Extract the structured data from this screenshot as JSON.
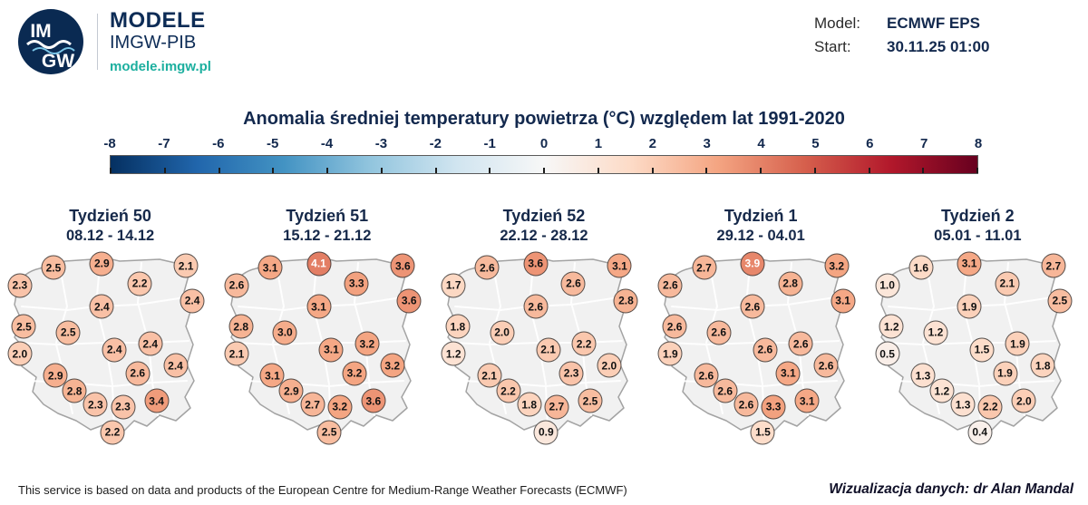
{
  "header": {
    "logo_letters_top": "IM",
    "logo_letters_bottom": "GW",
    "brand_top": "MODELE",
    "brand_bottom": "IMGW-PIB",
    "brand_url": "modele.imgw.pl",
    "model_label": "Model:",
    "model_value": "ECMWF EPS",
    "start_label": "Start:",
    "start_value": "30.11.25 01:00"
  },
  "footer": {
    "left": "This service is based on data and products of the European Centre for Medium-Range Weather Forecasts (ECMWF)",
    "right": "Wizualizacja danych: dr Alan Mandal"
  },
  "chart_data": {
    "type": "scatter",
    "subtype": "poland-temperature-anomaly-point-maps-small-multiples",
    "title": "Anomalia średniej temperatury powietrza (°C) względem lat 1991-2020",
    "unit": "°C",
    "white_text_threshold": 3.8,
    "colorbar": {
      "min": -8,
      "max": 8,
      "ticks": [
        -8,
        -7,
        -6,
        -5,
        -4,
        -3,
        -2,
        -1,
        0,
        1,
        2,
        3,
        4,
        5,
        6,
        7,
        8
      ],
      "gradient_stops": [
        {
          "v": -8,
          "c": "#053061"
        },
        {
          "v": -6.4,
          "c": "#2166ac"
        },
        {
          "v": -4.8,
          "c": "#4393c3"
        },
        {
          "v": -3.2,
          "c": "#92c5de"
        },
        {
          "v": -1.6,
          "c": "#d1e5f0"
        },
        {
          "v": 0,
          "c": "#f7f7f7"
        },
        {
          "v": 1.6,
          "c": "#fddbc7"
        },
        {
          "v": 3.2,
          "c": "#f4a582"
        },
        {
          "v": 4.8,
          "c": "#d6604d"
        },
        {
          "v": 6.4,
          "c": "#b2182b"
        },
        {
          "v": 8,
          "c": "#67001f"
        }
      ]
    },
    "stations": [
      {
        "id": "szczecin",
        "x": 7,
        "y": 16
      },
      {
        "id": "koszalin",
        "x": 23,
        "y": 7
      },
      {
        "id": "gdansk",
        "x": 46,
        "y": 5
      },
      {
        "id": "olsztyn",
        "x": 64,
        "y": 15
      },
      {
        "id": "suwalki",
        "x": 86,
        "y": 6
      },
      {
        "id": "bialystok",
        "x": 89,
        "y": 24
      },
      {
        "id": "torun",
        "x": 46,
        "y": 27
      },
      {
        "id": "gorzow",
        "x": 9,
        "y": 37
      },
      {
        "id": "poznan",
        "x": 30,
        "y": 40
      },
      {
        "id": "zielona-gora",
        "x": 7,
        "y": 51
      },
      {
        "id": "lodz",
        "x": 52,
        "y": 49
      },
      {
        "id": "warszawa",
        "x": 69,
        "y": 46
      },
      {
        "id": "wroclaw",
        "x": 24,
        "y": 62
      },
      {
        "id": "opole",
        "x": 33,
        "y": 70
      },
      {
        "id": "kielce",
        "x": 63,
        "y": 61
      },
      {
        "id": "lublin",
        "x": 81,
        "y": 57
      },
      {
        "id": "katowice",
        "x": 43,
        "y": 77
      },
      {
        "id": "krakow",
        "x": 56,
        "y": 78
      },
      {
        "id": "rzeszow",
        "x": 72,
        "y": 75
      },
      {
        "id": "zakopane",
        "x": 51,
        "y": 91
      }
    ],
    "panels": [
      {
        "week_label": "Tydzień 50",
        "date_range": "08.12 - 14.12",
        "values": [
          "2.3",
          "2.5",
          "2.9",
          "2.2",
          "2.1",
          "2.4",
          "2.4",
          "2.5",
          "2.5",
          "2.0",
          "2.4",
          "2.4",
          "2.9",
          "2.8",
          "2.6",
          "2.4",
          "2.3",
          "2.3",
          "3.4",
          "2.2"
        ]
      },
      {
        "week_label": "Tydzień 51",
        "date_range": "15.12 - 21.12",
        "values": [
          "2.6",
          "3.1",
          "4.1",
          "3.3",
          "3.6",
          "3.6",
          "3.1",
          "2.8",
          "3.0",
          "2.1",
          "3.1",
          "3.2",
          "3.1",
          "2.9",
          "3.2",
          "3.2",
          "2.7",
          "3.2",
          "3.6",
          "2.5"
        ]
      },
      {
        "week_label": "Tydzień 52",
        "date_range": "22.12 - 28.12",
        "values": [
          "1.7",
          "2.6",
          "3.6",
          "2.6",
          "3.1",
          "2.8",
          "2.6",
          "1.8",
          "2.0",
          "1.2",
          "2.1",
          "2.2",
          "2.1",
          "2.2",
          "2.3",
          "2.0",
          "1.8",
          "2.7",
          "2.5",
          "0.9"
        ]
      },
      {
        "week_label": "Tydzień 1",
        "date_range": "29.12 - 04.01",
        "values": [
          "2.6",
          "2.7",
          "3.9",
          "2.8",
          "3.2",
          "3.1",
          "2.6",
          "2.6",
          "2.6",
          "1.9",
          "2.6",
          "2.6",
          "2.6",
          "2.6",
          "3.1",
          "2.6",
          "2.6",
          "3.3",
          "3.1",
          "1.5"
        ]
      },
      {
        "week_label": "Tydzień 2",
        "date_range": "05.01 - 11.01",
        "values": [
          "1.0",
          "1.6",
          "3.1",
          "2.1",
          "2.7",
          "2.5",
          "1.9",
          "1.2",
          "1.2",
          "0.5",
          "1.5",
          "1.9",
          "1.3",
          "1.2",
          "1.9",
          "1.8",
          "1.3",
          "2.2",
          "2.0",
          "0.4"
        ]
      }
    ]
  }
}
